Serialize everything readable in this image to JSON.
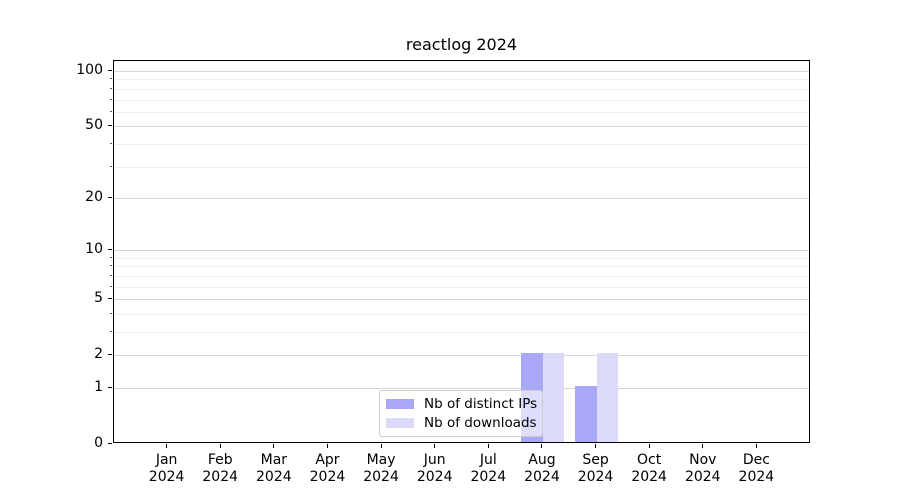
{
  "chart_data": {
    "type": "bar",
    "title": "reactlog 2024",
    "categories": [
      "Jan",
      "Feb",
      "Mar",
      "Apr",
      "May",
      "Jun",
      "Jul",
      "Aug",
      "Sep",
      "Oct",
      "Nov",
      "Dec"
    ],
    "category_year": "2024",
    "series": [
      {
        "name": "Nb of distinct IPs",
        "color": "#a8a8f7",
        "values": [
          0,
          0,
          0,
          0,
          0,
          0,
          0,
          2,
          1,
          0,
          0,
          0
        ]
      },
      {
        "name": "Nb of downloads",
        "color": "#dbdaf8",
        "values": [
          0,
          0,
          0,
          0,
          0,
          0,
          0,
          2,
          2,
          0,
          0,
          0
        ]
      }
    ],
    "y_axis": {
      "scale": "log1p",
      "major_ticks": [
        0,
        1,
        2,
        5,
        10,
        20,
        50,
        100
      ],
      "minor_ticks": [
        3,
        4,
        6,
        7,
        8,
        9,
        30,
        40,
        60,
        70,
        80,
        90
      ],
      "top_value": 113.4,
      "ylim": [
        0,
        113.4
      ]
    },
    "grid": {
      "major_color": "#d6d6d6",
      "minor_color": "#efefef"
    },
    "legend": {
      "position": "lower center"
    }
  }
}
